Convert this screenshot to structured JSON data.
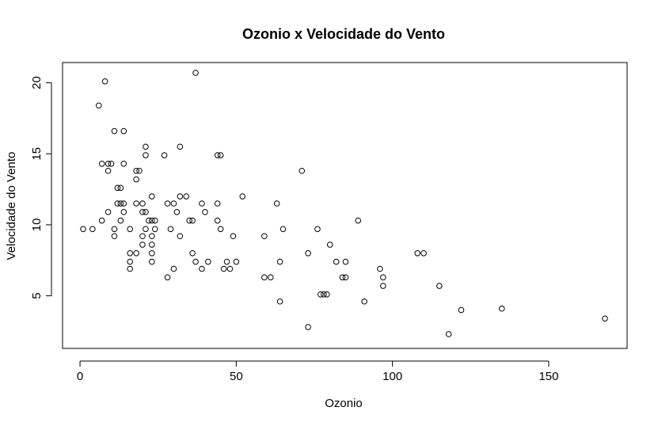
{
  "chart_data": {
    "type": "scatter",
    "title": "Ozonio x Velocidade do Vento",
    "xlabel": "Ozonio",
    "ylabel": "Velocidade do Vento",
    "xlim": [
      1,
      168
    ],
    "ylim": [
      2.3,
      20.7
    ],
    "xticks": [
      0,
      50,
      100,
      150
    ],
    "yticks": [
      5,
      10,
      15,
      20
    ],
    "grid": false,
    "marker": "open-circle",
    "points": [
      [
        1,
        9.7
      ],
      [
        4,
        9.7
      ],
      [
        6,
        18.4
      ],
      [
        7,
        14.3
      ],
      [
        7,
        10.3
      ],
      [
        8,
        20.1
      ],
      [
        9,
        14.3
      ],
      [
        9,
        13.8
      ],
      [
        9,
        10.9
      ],
      [
        10,
        14.3
      ],
      [
        11,
        16.6
      ],
      [
        11,
        9.7
      ],
      [
        11,
        9.2
      ],
      [
        12,
        12.6
      ],
      [
        12,
        11.5
      ],
      [
        13,
        12.6
      ],
      [
        13,
        11.5
      ],
      [
        13,
        10.3
      ],
      [
        14,
        16.6
      ],
      [
        14,
        14.3
      ],
      [
        14,
        11.5
      ],
      [
        14,
        10.9
      ],
      [
        16,
        9.7
      ],
      [
        16,
        8.0
      ],
      [
        16,
        7.4
      ],
      [
        16,
        6.9
      ],
      [
        18,
        13.8
      ],
      [
        18,
        13.2
      ],
      [
        18,
        11.5
      ],
      [
        18,
        8.0
      ],
      [
        19,
        13.8
      ],
      [
        20,
        11.5
      ],
      [
        20,
        10.9
      ],
      [
        20,
        9.2
      ],
      [
        20,
        8.6
      ],
      [
        21,
        15.5
      ],
      [
        21,
        14.9
      ],
      [
        21,
        10.9
      ],
      [
        21,
        9.7
      ],
      [
        22,
        10.3
      ],
      [
        23,
        12.0
      ],
      [
        23,
        10.3
      ],
      [
        23,
        9.2
      ],
      [
        23,
        8.6
      ],
      [
        23,
        8.0
      ],
      [
        23,
        7.4
      ],
      [
        24,
        10.3
      ],
      [
        24,
        9.7
      ],
      [
        27,
        14.9
      ],
      [
        28,
        11.5
      ],
      [
        28,
        6.3
      ],
      [
        29,
        9.7
      ],
      [
        30,
        11.5
      ],
      [
        30,
        6.9
      ],
      [
        31,
        10.9
      ],
      [
        32,
        15.5
      ],
      [
        32,
        12.0
      ],
      [
        32,
        9.2
      ],
      [
        34,
        12.0
      ],
      [
        35,
        10.3
      ],
      [
        36,
        10.3
      ],
      [
        36,
        8.0
      ],
      [
        37,
        20.7
      ],
      [
        37,
        7.4
      ],
      [
        39,
        11.5
      ],
      [
        39,
        6.9
      ],
      [
        40,
        10.9
      ],
      [
        41,
        7.4
      ],
      [
        44,
        14.9
      ],
      [
        44,
        11.5
      ],
      [
        44,
        10.3
      ],
      [
        45,
        14.9
      ],
      [
        45,
        9.7
      ],
      [
        46,
        6.9
      ],
      [
        47,
        7.4
      ],
      [
        48,
        6.9
      ],
      [
        49,
        9.2
      ],
      [
        50,
        7.4
      ],
      [
        52,
        12.0
      ],
      [
        59,
        9.2
      ],
      [
        59,
        6.3
      ],
      [
        61,
        6.3
      ],
      [
        63,
        11.5
      ],
      [
        64,
        7.4
      ],
      [
        64,
        4.6
      ],
      [
        65,
        9.7
      ],
      [
        71,
        13.8
      ],
      [
        73,
        8.0
      ],
      [
        73,
        2.8
      ],
      [
        76,
        9.7
      ],
      [
        77,
        5.1
      ],
      [
        78,
        5.1
      ],
      [
        79,
        5.1
      ],
      [
        80,
        8.6
      ],
      [
        82,
        7.4
      ],
      [
        84,
        6.3
      ],
      [
        85,
        7.4
      ],
      [
        85,
        6.3
      ],
      [
        89,
        10.3
      ],
      [
        91,
        4.6
      ],
      [
        96,
        6.9
      ],
      [
        97,
        6.3
      ],
      [
        97,
        5.7
      ],
      [
        108,
        8.0
      ],
      [
        110,
        8.0
      ],
      [
        115,
        5.7
      ],
      [
        118,
        2.3
      ],
      [
        122,
        4.0
      ],
      [
        135,
        4.1
      ],
      [
        168,
        3.4
      ]
    ]
  }
}
